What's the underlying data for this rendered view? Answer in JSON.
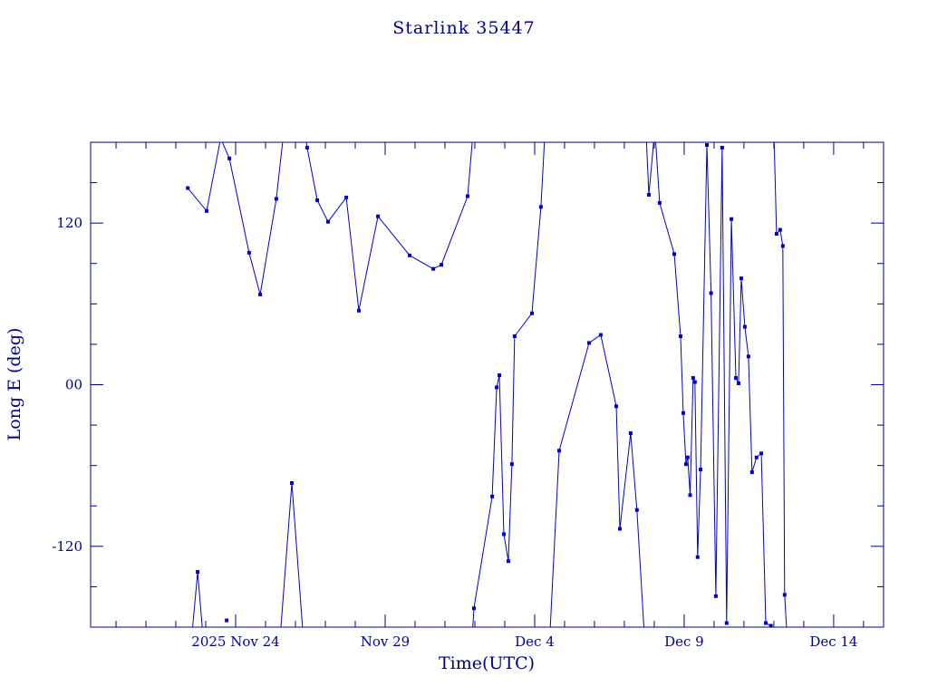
{
  "chart_data": {
    "type": "line",
    "title": "Starlink 35447",
    "xlabel": "Time(UTC)",
    "ylabel": "Long E (deg)",
    "grid": false,
    "legend": null,
    "marker": "filled-square",
    "colors": {
      "ink": "#00008b",
      "line": "#0000cd"
    },
    "x_axis": {
      "unit": "days since 2025-11-19 00:00 UTC",
      "min": 0.15,
      "max": 26.67,
      "minor_step": 1,
      "major_ticks": [
        {
          "x": 5,
          "label": "2025 Nov 24"
        },
        {
          "x": 10,
          "label": "Nov 29"
        },
        {
          "x": 15,
          "label": "Dec 4"
        },
        {
          "x": 20,
          "label": "Dec 9"
        },
        {
          "x": 25,
          "label": "Dec 14"
        }
      ]
    },
    "y_axis": {
      "min": -180,
      "max": 180,
      "minor_step": 30,
      "major_ticks": [
        {
          "y": 120,
          "label": "120"
        },
        {
          "y": 0,
          "label": "00"
        },
        {
          "y": -120,
          "label": "-120"
        }
      ]
    },
    "series": [
      {
        "name": "track-segment-1",
        "points": [
          [
            3.4,
            146
          ],
          [
            4.03,
            129
          ],
          [
            4.5,
            183
          ],
          [
            4.79,
            168
          ],
          [
            5.45,
            98
          ],
          [
            5.82,
            67
          ],
          [
            6.36,
            138
          ],
          [
            6.62,
            190
          ],
          [
            7.3,
            190
          ],
          [
            7.39,
            176
          ],
          [
            7.73,
            137
          ],
          [
            8.09,
            121
          ],
          [
            8.7,
            139
          ],
          [
            9.12,
            55
          ],
          [
            9.76,
            125
          ],
          [
            10.82,
            96
          ],
          [
            11.61,
            86
          ],
          [
            11.88,
            89
          ],
          [
            12.76,
            140
          ],
          [
            12.95,
            190
          ]
        ]
      },
      {
        "name": "track-segment-2",
        "points": [
          [
            3.52,
            -190
          ],
          [
            3.73,
            -139
          ],
          [
            3.92,
            -190
          ]
        ]
      },
      {
        "name": "track-segment-3",
        "points": [
          [
            4.7,
            -175
          ]
        ]
      },
      {
        "name": "track-segment-4",
        "points": [
          [
            6.48,
            -190
          ],
          [
            6.88,
            -73
          ],
          [
            7.27,
            -190
          ]
        ]
      },
      {
        "name": "track-segment-5",
        "points": [
          [
            12.9,
            -190
          ],
          [
            12.97,
            -166
          ],
          [
            13.58,
            -83
          ],
          [
            13.73,
            -2
          ],
          [
            13.82,
            7
          ],
          [
            13.97,
            -111
          ],
          [
            14.12,
            -131
          ],
          [
            14.24,
            -59
          ],
          [
            14.33,
            36
          ],
          [
            14.91,
            53
          ],
          [
            15.21,
            132
          ],
          [
            15.35,
            190
          ]
        ]
      },
      {
        "name": "track-segment-6",
        "points": [
          [
            15.5,
            -190
          ],
          [
            15.82,
            -49
          ],
          [
            16.82,
            31
          ],
          [
            17.21,
            37
          ],
          [
            17.73,
            -16
          ],
          [
            17.85,
            -107
          ],
          [
            18.21,
            -36
          ],
          [
            18.42,
            -93
          ],
          [
            18.68,
            -190
          ]
        ]
      },
      {
        "name": "track-segment-7",
        "points": [
          [
            18.72,
            190
          ],
          [
            18.82,
            141
          ],
          [
            19.02,
            190
          ],
          [
            19.18,
            135
          ],
          [
            19.67,
            97
          ],
          [
            19.88,
            36
          ],
          [
            19.97,
            -21
          ],
          [
            20.06,
            -59
          ],
          [
            20.12,
            -54
          ],
          [
            20.2,
            -82
          ],
          [
            20.3,
            5
          ],
          [
            20.36,
            2
          ],
          [
            20.45,
            -128
          ],
          [
            20.55,
            -63
          ],
          [
            20.76,
            178
          ],
          [
            20.9,
            68
          ],
          [
            21.06,
            -157
          ],
          [
            21.27,
            176
          ],
          [
            21.42,
            -177
          ],
          [
            21.58,
            123
          ],
          [
            21.73,
            5
          ],
          [
            21.82,
            1
          ],
          [
            21.91,
            79
          ],
          [
            22.03,
            43
          ],
          [
            22.15,
            21
          ],
          [
            22.27,
            -65
          ],
          [
            22.42,
            -54
          ],
          [
            22.58,
            -51
          ],
          [
            22.73,
            -177
          ],
          [
            22.9,
            -179
          ],
          [
            22.97,
            -190
          ]
        ]
      },
      {
        "name": "track-segment-8",
        "points": [
          [
            23.0,
            190
          ],
          [
            23.09,
            112
          ],
          [
            23.21,
            115
          ],
          [
            23.3,
            103
          ],
          [
            23.36,
            -156
          ],
          [
            23.45,
            -190
          ]
        ]
      }
    ]
  }
}
